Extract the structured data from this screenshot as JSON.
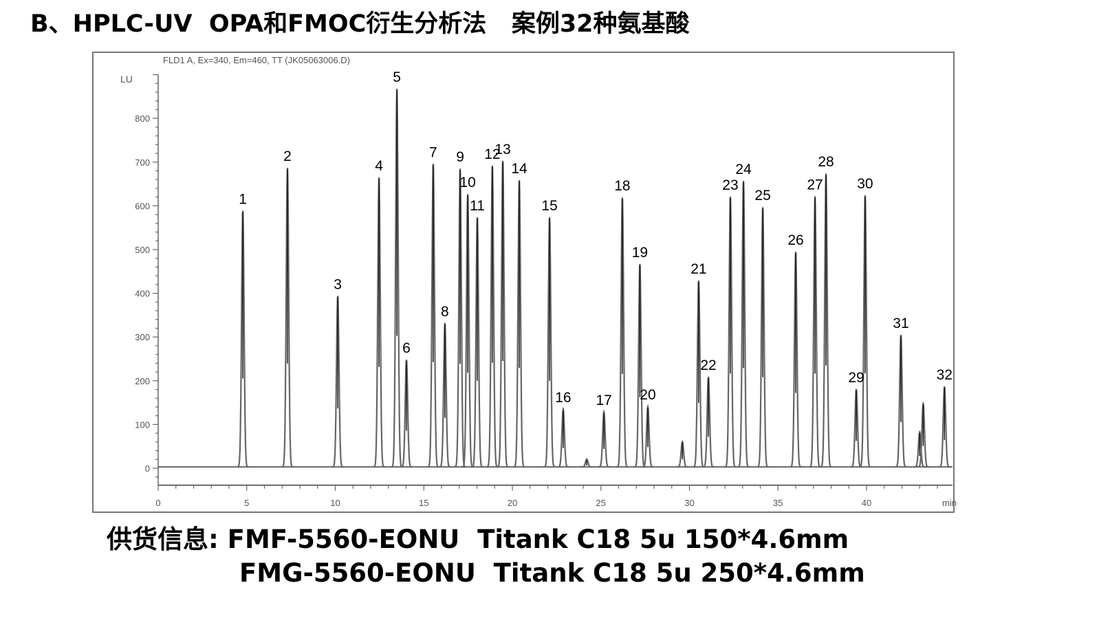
{
  "title": "B、HPLC-UV  OPA和FMOC衍生分析法   案例32种氨基酸",
  "footer": {
    "line1": "供货信息: FMF-5560-EONU  Titank C18 5u 150*4.6mm",
    "line2": "FMG-5560-EONU  Titank C18 5u 250*4.6mm"
  },
  "chart_data": {
    "type": "line",
    "title": "FLD1 A, Ex=340, Em=460, TT (JK05063006.D)",
    "ylabel": "LU",
    "xlabel": "min",
    "xlim": [
      0,
      44.85
    ],
    "ylim": [
      -39,
      900
    ],
    "xticks": [
      0,
      5,
      10,
      15,
      20,
      25,
      30,
      35,
      40
    ],
    "yticks": [
      0,
      100,
      200,
      300,
      400,
      500,
      600,
      700,
      800
    ],
    "grid": false,
    "line_color": "#555555",
    "peaks": [
      {
        "label": "1",
        "rt": 4.78,
        "height": 586
      },
      {
        "label": "2",
        "rt": 7.3,
        "height": 684
      },
      {
        "label": "3",
        "rt": 10.14,
        "height": 391
      },
      {
        "label": "4",
        "rt": 12.47,
        "height": 662
      },
      {
        "label": "5",
        "rt": 13.48,
        "height": 865
      },
      {
        "label": "6",
        "rt": 14.02,
        "height": 245
      },
      {
        "label": "7",
        "rt": 15.53,
        "height": 693
      },
      {
        "label": "8",
        "rt": 16.19,
        "height": 329
      },
      {
        "label": "9",
        "rt": 17.05,
        "height": 682
      },
      {
        "label": "10",
        "rt": 17.48,
        "height": 624
      },
      {
        "label": "11",
        "rt": 18.02,
        "height": 571
      },
      {
        "label": "12",
        "rt": 18.87,
        "height": 689
      },
      {
        "label": "13",
        "rt": 19.46,
        "height": 700
      },
      {
        "label": "14",
        "rt": 20.39,
        "height": 656
      },
      {
        "label": "15",
        "rt": 22.1,
        "height": 571
      },
      {
        "label": "16",
        "rt": 22.87,
        "height": 132
      },
      {
        "label": "17",
        "rt": 25.17,
        "height": 126
      },
      {
        "label": "18",
        "rt": 26.21,
        "height": 616
      },
      {
        "label": "19",
        "rt": 27.2,
        "height": 464
      },
      {
        "label": "20",
        "rt": 27.65,
        "height": 138
      },
      {
        "label": "21",
        "rt": 30.52,
        "height": 426
      },
      {
        "label": "22",
        "rt": 31.07,
        "height": 206
      },
      {
        "label": "23",
        "rt": 32.31,
        "height": 618
      },
      {
        "label": "24",
        "rt": 33.05,
        "height": 654
      },
      {
        "label": "25",
        "rt": 34.14,
        "height": 594
      },
      {
        "label": "26",
        "rt": 36.0,
        "height": 492
      },
      {
        "label": "27",
        "rt": 37.09,
        "height": 619
      },
      {
        "label": "28",
        "rt": 37.71,
        "height": 671
      },
      {
        "label": "29",
        "rt": 39.42,
        "height": 178
      },
      {
        "label": "30",
        "rt": 39.92,
        "height": 621
      },
      {
        "label": "31",
        "rt": 41.94,
        "height": 302
      },
      {
        "label": "32",
        "rt": 44.4,
        "height": 184
      }
    ],
    "minor_peaks": [
      {
        "rt": 24.2,
        "height": 18
      },
      {
        "rt": 29.6,
        "height": 58
      },
      {
        "rt": 43.0,
        "height": 80
      },
      {
        "rt": 43.2,
        "height": 145
      }
    ]
  }
}
